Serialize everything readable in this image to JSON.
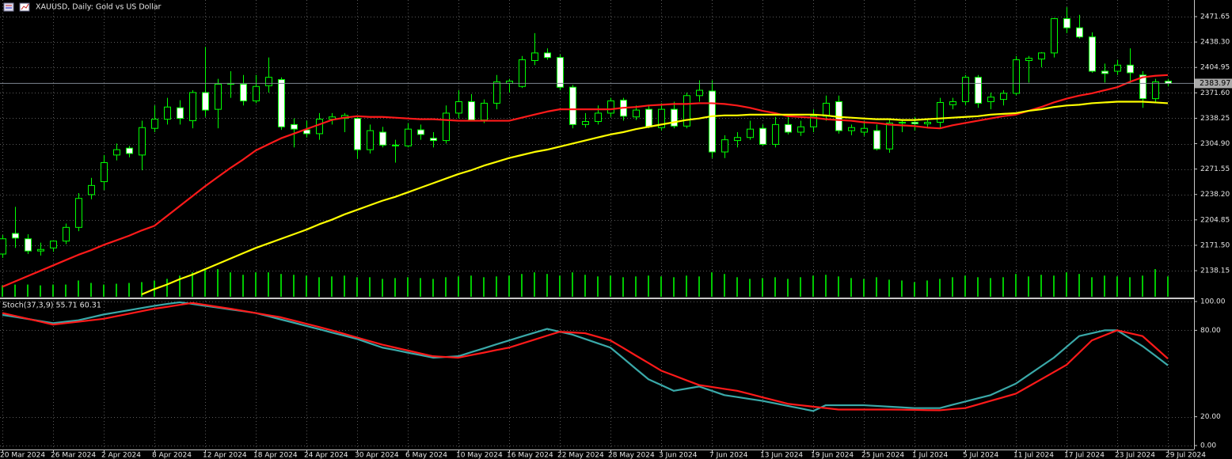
{
  "chart_data": [
    {
      "type": "candlestick",
      "title": "XAUUSD, Daily:  Gold vs US Dollar",
      "categories": [
        "20 Mar 2024",
        null,
        null,
        null,
        "26 Mar 2024",
        null,
        null,
        null,
        "2 Apr 2024",
        null,
        null,
        null,
        "8 Apr 2024",
        null,
        null,
        null,
        "12 Apr 2024",
        null,
        null,
        null,
        "18 Apr 2024",
        null,
        null,
        null,
        "24 Apr 2024",
        null,
        null,
        null,
        "30 Apr 2024",
        null,
        null,
        null,
        "6 May 2024",
        null,
        null,
        null,
        "10 May 2024",
        null,
        null,
        null,
        "16 May 2024",
        null,
        null,
        null,
        "22 May 2024",
        null,
        null,
        null,
        "28 May 2024",
        null,
        null,
        null,
        "3 Jun 2024",
        null,
        null,
        null,
        "7 Jun 2024",
        null,
        null,
        null,
        "13 Jun 2024",
        null,
        null,
        null,
        "19 Jun 2024",
        null,
        null,
        null,
        "25 Jun 2024",
        null,
        null,
        null,
        "1 Jul 2024",
        null,
        null,
        null,
        "5 Jul 2024",
        null,
        null,
        null,
        "11 Jul 2024",
        null,
        null,
        null,
        "17 Jul 2024",
        null,
        null,
        null,
        "23 Jul 2024",
        null,
        null,
        null,
        "29 Jul 2024"
      ],
      "open": [
        2160,
        2187,
        2180,
        2164,
        2168,
        2177,
        2195,
        2238,
        2255,
        2290,
        2299,
        2290,
        2325,
        2337,
        2352,
        2335,
        2372,
        2350,
        2384,
        2383,
        2361,
        2381,
        2389,
        2330,
        2323,
        2318,
        2337,
        2338,
        2338,
        2297,
        2320,
        2303,
        2302,
        2323,
        2312,
        2309,
        2345,
        2360,
        2336,
        2358,
        2384,
        2380,
        2414,
        2424,
        2418,
        2379,
        2330,
        2334,
        2345,
        2362,
        2340,
        2350,
        2326,
        2350,
        2328,
        2368,
        2374,
        2294,
        2309,
        2313,
        2325,
        2304,
        2330,
        2320,
        2327,
        2341,
        2360,
        2322,
        2320,
        2322,
        2298,
        2332,
        2333,
        2331,
        2333,
        2356,
        2360,
        2392,
        2360,
        2363,
        2371,
        2414,
        2416,
        2424,
        2469,
        2457,
        2445,
        2400,
        2400,
        2408,
        2395,
        2364,
        2387
      ],
      "high": [
        2185,
        2222,
        2186,
        2175,
        2178,
        2200,
        2240,
        2260,
        2290,
        2305,
        2302,
        2335,
        2355,
        2365,
        2362,
        2375,
        2432,
        2390,
        2400,
        2395,
        2395,
        2418,
        2392,
        2338,
        2335,
        2345,
        2345,
        2345,
        2340,
        2330,
        2327,
        2310,
        2332,
        2330,
        2320,
        2355,
        2375,
        2370,
        2363,
        2395,
        2390,
        2420,
        2450,
        2430,
        2422,
        2382,
        2345,
        2355,
        2365,
        2365,
        2355,
        2356,
        2358,
        2360,
        2372,
        2388,
        2388,
        2316,
        2320,
        2335,
        2330,
        2340,
        2342,
        2335,
        2350,
        2368,
        2368,
        2330,
        2335,
        2330,
        2338,
        2336,
        2340,
        2338,
        2365,
        2365,
        2395,
        2395,
        2372,
        2375,
        2420,
        2420,
        2425,
        2470,
        2484,
        2474,
        2451,
        2410,
        2415,
        2430,
        2400,
        2390,
        2390
      ],
      "low": [
        2155,
        2168,
        2160,
        2158,
        2163,
        2173,
        2190,
        2232,
        2244,
        2283,
        2287,
        2270,
        2320,
        2330,
        2330,
        2325,
        2340,
        2325,
        2365,
        2355,
        2358,
        2372,
        2323,
        2300,
        2313,
        2310,
        2330,
        2320,
        2285,
        2292,
        2300,
        2280,
        2300,
        2310,
        2300,
        2305,
        2338,
        2335,
        2332,
        2350,
        2372,
        2378,
        2408,
        2415,
        2375,
        2325,
        2326,
        2330,
        2340,
        2335,
        2336,
        2325,
        2322,
        2325,
        2325,
        2360,
        2286,
        2286,
        2300,
        2310,
        2302,
        2300,
        2317,
        2315,
        2320,
        2335,
        2318,
        2316,
        2315,
        2296,
        2293,
        2320,
        2322,
        2326,
        2325,
        2350,
        2355,
        2352,
        2350,
        2355,
        2368,
        2385,
        2405,
        2418,
        2450,
        2443,
        2398,
        2385,
        2395,
        2384,
        2352,
        2360,
        2380
      ],
      "close": [
        2180,
        2181,
        2164,
        2166,
        2177,
        2195,
        2233,
        2250,
        2280,
        2297,
        2292,
        2326,
        2337,
        2353,
        2338,
        2372,
        2349,
        2383,
        2383,
        2361,
        2380,
        2392,
        2327,
        2324,
        2318,
        2337,
        2340,
        2342,
        2297,
        2322,
        2303,
        2302,
        2324,
        2317,
        2309,
        2345,
        2360,
        2336,
        2358,
        2386,
        2387,
        2415,
        2424,
        2418,
        2379,
        2330,
        2334,
        2345,
        2361,
        2341,
        2349,
        2327,
        2350,
        2328,
        2368,
        2375,
        2294,
        2310,
        2313,
        2324,
        2304,
        2330,
        2320,
        2327,
        2341,
        2358,
        2322,
        2326,
        2325,
        2298,
        2332,
        2333,
        2331,
        2333,
        2359,
        2360,
        2392,
        2358,
        2366,
        2371,
        2415,
        2417,
        2424,
        2469,
        2457,
        2445,
        2400,
        2397,
        2408,
        2398,
        2364,
        2386,
        2384
      ],
      "volume": [
        14,
        15,
        15,
        14,
        15,
        15,
        20,
        17,
        15,
        16,
        17,
        18,
        20,
        22,
        26,
        30,
        35,
        34,
        30,
        27,
        30,
        30,
        28,
        27,
        26,
        24,
        25,
        26,
        24,
        24,
        22,
        23,
        24,
        23,
        22,
        24,
        25,
        26,
        24,
        25,
        26,
        28,
        30,
        28,
        26,
        30,
        27,
        25,
        26,
        24,
        25,
        26,
        25,
        24,
        26,
        25,
        30,
        28,
        24,
        22,
        23,
        24,
        22,
        24,
        26,
        27,
        25,
        23,
        22,
        24,
        21,
        20,
        18,
        20,
        22,
        24,
        26,
        24,
        23,
        24,
        28,
        25,
        27,
        26,
        30,
        28,
        24,
        26,
        25,
        24,
        26,
        34,
        25
      ],
      "up_color": "#000000",
      "down_color": "#ffffff",
      "wick_color": "#00ff00",
      "volume_color": "#00c800",
      "series": [
        {
          "color": "#ff1a1a",
          "values": [
            2117,
            2124,
            2131,
            2138,
            2145,
            2152,
            2159,
            2165,
            2172,
            2178,
            2184,
            2191,
            2197,
            2210,
            2223,
            2236,
            2249,
            2261,
            2273,
            2284,
            2296,
            2304,
            2312,
            2318,
            2324,
            2330,
            2336,
            2339,
            2341,
            2340,
            2340,
            2339,
            2338,
            2337,
            2337,
            2336,
            2335,
            2335,
            2335,
            2335,
            2335,
            2339,
            2343,
            2347,
            2350,
            2350,
            2350,
            2350,
            2350,
            2352,
            2353,
            2355,
            2356,
            2357,
            2357,
            2358,
            2358,
            2357,
            2355,
            2352,
            2348,
            2345,
            2341,
            2340,
            2339,
            2337,
            2336,
            2335,
            2333,
            2332,
            2330,
            2329,
            2328,
            2326,
            2325,
            2329,
            2332,
            2335,
            2338,
            2341,
            2343,
            2348,
            2353,
            2359,
            2364,
            2368,
            2371,
            2375,
            2379,
            2386,
            2392,
            2394,
            2395
          ]
        },
        {
          "color": "#ffff00",
          "values": [
            null,
            null,
            null,
            null,
            null,
            null,
            null,
            null,
            null,
            null,
            null,
            2107,
            2114,
            2120,
            2127,
            2133,
            2140,
            2147,
            2154,
            2161,
            2168,
            2174,
            2180,
            2186,
            2192,
            2199,
            2205,
            2212,
            2218,
            2224,
            2230,
            2235,
            2241,
            2247,
            2253,
            2259,
            2265,
            2270,
            2276,
            2281,
            2286,
            2290,
            2294,
            2297,
            2301,
            2305,
            2309,
            2313,
            2317,
            2320,
            2324,
            2327,
            2330,
            2333,
            2336,
            2338,
            2341,
            2342,
            2342,
            2343,
            2343,
            2343,
            2343,
            2343,
            2343,
            2342,
            2340,
            2339,
            2338,
            2337,
            2337,
            2336,
            2336,
            2337,
            2338,
            2339,
            2340,
            2341,
            2343,
            2344,
            2345,
            2348,
            2350,
            2353,
            2355,
            2356,
            2358,
            2359,
            2360,
            2360,
            2360,
            2359,
            2358
          ]
        }
      ],
      "last_price": 2383.97,
      "ylim": [
        2103.9,
        2493.5
      ],
      "yticks": [
        2471.65,
        {
          "value": 2438.3,
          "label": "2438.30"
        },
        2404.95,
        {
          "value": 2371.6,
          "label": "2371.60"
        },
        2338.25,
        {
          "value": 2304.9,
          "label": "2304.90"
        },
        2271.55,
        {
          "value": 2238.2,
          "label": "2238.20"
        },
        2204.85,
        {
          "value": 2171.5,
          "label": "2171.50"
        },
        2138.15
      ],
      "grid": true
    },
    {
      "type": "line",
      "title": "Stoch(37,3,9) 55.71 60.31",
      "series": [
        {
          "color": "#3aa9a9",
          "values": [
            90.7,
            89.3,
            87.9,
            86.4,
            85,
            86,
            87,
            89,
            91,
            92.5,
            94,
            95.5,
            97,
            98.3,
            99.5,
            98.3,
            97,
            95.8,
            94.5,
            93.3,
            92,
            89.8,
            87.5,
            85.3,
            83,
            80.8,
            78.5,
            76.3,
            74,
            71,
            68,
            66.3,
            64.5,
            62.8,
            61,
            61.5,
            62,
            64.8,
            67.5,
            70.3,
            73,
            75.7,
            78.3,
            81,
            79,
            77,
            74,
            71,
            68,
            60.7,
            53.3,
            46,
            42,
            38,
            39.5,
            41,
            38,
            35,
            33.7,
            32.3,
            31,
            29.3,
            27.5,
            25.8,
            24,
            28,
            28,
            28,
            28,
            27.5,
            27,
            26.5,
            26,
            26,
            26,
            28.3,
            30.5,
            32.8,
            35,
            39,
            43,
            49,
            55,
            61,
            68.5,
            76,
            78,
            80,
            80,
            74.5,
            69,
            62.4,
            55.71
          ]
        },
        {
          "color": "#ff1a1a",
          "values": [
            92,
            90,
            88,
            86,
            84,
            85,
            86,
            87,
            88,
            89.8,
            91.5,
            93.3,
            95,
            96.3,
            97.7,
            99,
            97.7,
            96.3,
            95,
            93.5,
            92,
            90.5,
            89,
            86.8,
            84.5,
            82.3,
            80,
            77.5,
            75,
            72.5,
            70,
            68,
            66,
            64,
            62,
            61.5,
            61,
            62.8,
            64.5,
            66.3,
            68,
            70.8,
            73.5,
            76.3,
            79,
            78.5,
            78,
            75.5,
            73,
            67.8,
            62.5,
            57.3,
            52,
            48.7,
            45.3,
            42,
            40.7,
            39.3,
            38,
            35.8,
            33.5,
            31.3,
            29,
            28,
            27,
            26,
            25,
            25,
            25,
            25,
            25,
            24.9,
            24.8,
            24.6,
            24.5,
            25.3,
            26,
            28.5,
            31,
            33.5,
            36,
            41,
            46,
            51,
            56,
            64.5,
            73,
            76.5,
            80,
            78,
            76,
            68.2,
            60.31
          ]
        }
      ],
      "ylim": [
        0,
        100
      ],
      "yticks": [
        {
          "value": 100,
          "label": "100.00"
        },
        {
          "value": 80,
          "label": "80.00"
        },
        {
          "value": 20,
          "label": "20.00"
        },
        {
          "value": 0,
          "label": "0.00"
        }
      ],
      "grid": true
    }
  ]
}
